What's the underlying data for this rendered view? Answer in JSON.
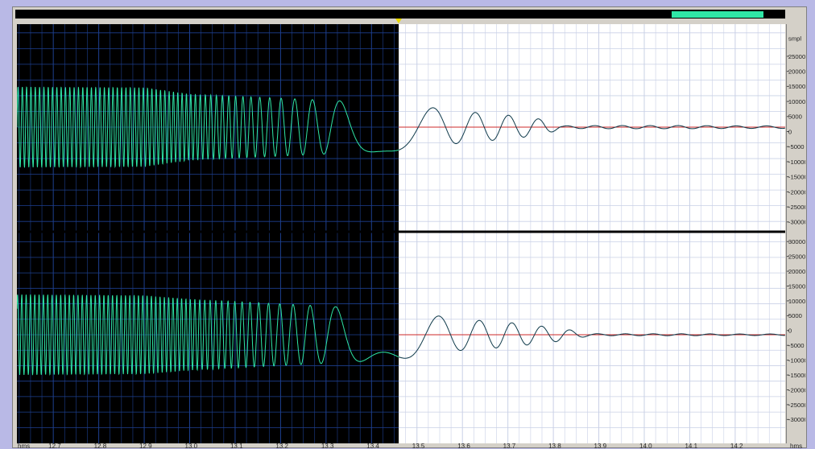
{
  "window": {
    "background_color": "#b9b9e6",
    "panel_color": "#d4d0c8"
  },
  "overview": {
    "thumb_start_fraction": 0.853,
    "thumb_end_fraction": 0.972,
    "thumb_color": "#2fe6a6",
    "cursor_marker_color": "#e8d800"
  },
  "vertical_ruler": {
    "unit_label": "smpl",
    "channel_1_ticks": [
      "25000",
      "20000",
      "15000",
      "10000",
      "5000",
      "0",
      "-5000",
      "-10000",
      "-15000",
      "-20000",
      "-25000",
      "-30000"
    ],
    "channel_2_ticks": [
      "30000",
      "25000",
      "20000",
      "15000",
      "10000",
      "5000",
      "0",
      "-5000",
      "-10000",
      "-15000",
      "-20000",
      "-25000",
      "-30000"
    ]
  },
  "time_ruler": {
    "unit_label_left": "hms",
    "unit_label_right": "hms",
    "ticks": [
      "12.7",
      "12.8",
      "12.9",
      "13.0",
      "13.1",
      "13.2",
      "13.3",
      "13.4",
      "13.5",
      "13.6",
      "13.7",
      "13.8",
      "13.9",
      "14.0",
      "14.1",
      "14.2"
    ]
  },
  "colors": {
    "selected_background": "#000000",
    "selected_waveform": "#2fe6a6",
    "unselected_background": "#ffffff",
    "unselected_waveform": "#0f3a4a",
    "grid_dark": "#1d3f8f",
    "grid_light": "#c9d0e6",
    "zero_line": "#cc2a2a",
    "channel_separator": "#000000"
  },
  "chart_data": {
    "type": "line",
    "title": "",
    "xlabel": "hms",
    "ylabel": "smpl",
    "xlim": [
      12.62,
      14.31
    ],
    "ylim": [
      -32768,
      32767
    ],
    "selection": [
      12.62,
      13.46
    ],
    "note_values": "approximate envelope of each channel",
    "series": [
      {
        "name": "",
        "channel": 1,
        "envelope_x": [
          12.62,
          12.9,
          13.0,
          13.46,
          13.5,
          13.6,
          13.7,
          13.78,
          13.82,
          13.9,
          14.0,
          14.1,
          14.2,
          14.3
        ],
        "envelope_amplitude": [
          12800,
          12600,
          10500,
          7500,
          6800,
          5000,
          3800,
          2400,
          400,
          500,
          500,
          500,
          400,
          400
        ]
      },
      {
        "name": "",
        "channel": 2,
        "envelope_x": [
          12.62,
          12.9,
          13.0,
          13.46,
          13.5,
          13.6,
          13.7,
          13.82,
          13.88,
          13.9,
          14.0,
          14.1,
          14.2,
          14.3
        ],
        "envelope_amplitude": [
          13000,
          12700,
          11500,
          8000,
          7000,
          5000,
          4000,
          2000,
          400,
          300,
          300,
          300,
          250,
          250
        ]
      }
    ]
  }
}
